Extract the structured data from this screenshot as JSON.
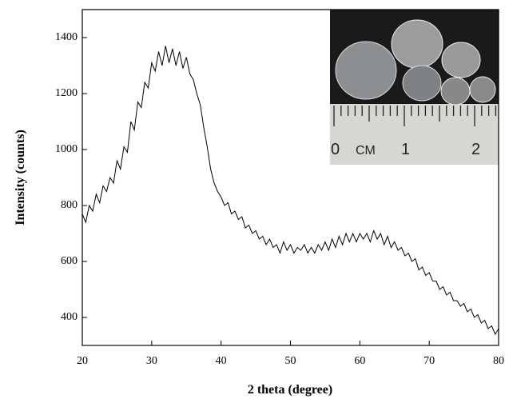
{
  "chart_data": {
    "type": "line",
    "x_label": "2 theta (degree)",
    "y_label": "Intensity (counts)",
    "x": [
      20,
      20.5,
      21,
      21.5,
      22,
      22.5,
      23,
      23.5,
      24,
      24.5,
      25,
      25.5,
      26,
      26.5,
      27,
      27.5,
      28,
      28.5,
      29,
      29.5,
      30,
      30.5,
      31,
      31.5,
      32,
      32.5,
      33,
      33.5,
      34,
      34.5,
      35,
      35.5,
      36,
      36.5,
      37,
      37.5,
      38,
      38.5,
      39,
      39.5,
      40,
      40.5,
      41,
      41.5,
      42,
      42.5,
      43,
      43.5,
      44,
      44.5,
      45,
      45.5,
      46,
      46.5,
      47,
      47.5,
      48,
      48.5,
      49,
      49.5,
      50,
      50.5,
      51,
      51.5,
      52,
      52.5,
      53,
      53.5,
      54,
      54.5,
      55,
      55.5,
      56,
      56.5,
      57,
      57.5,
      58,
      58.5,
      59,
      59.5,
      60,
      60.5,
      61,
      61.5,
      62,
      62.5,
      63,
      63.5,
      64,
      64.5,
      65,
      65.5,
      66,
      66.5,
      67,
      67.5,
      68,
      68.5,
      69,
      69.5,
      70,
      70.5,
      71,
      71.5,
      72,
      72.5,
      73,
      73.5,
      74,
      74.5,
      75,
      75.5,
      76,
      76.5,
      77,
      77.5,
      78,
      78.5,
      79,
      79.5,
      80
    ],
    "values": [
      770,
      740,
      800,
      780,
      840,
      810,
      870,
      850,
      900,
      880,
      960,
      930,
      1010,
      990,
      1100,
      1070,
      1170,
      1150,
      1240,
      1220,
      1310,
      1280,
      1350,
      1300,
      1370,
      1310,
      1360,
      1300,
      1350,
      1290,
      1330,
      1270,
      1250,
      1200,
      1160,
      1080,
      1010,
      930,
      880,
      850,
      830,
      800,
      810,
      770,
      780,
      750,
      760,
      720,
      730,
      700,
      710,
      680,
      690,
      660,
      680,
      650,
      660,
      630,
      670,
      640,
      660,
      630,
      650,
      640,
      660,
      630,
      650,
      630,
      660,
      640,
      670,
      640,
      680,
      650,
      690,
      660,
      700,
      670,
      700,
      670,
      700,
      680,
      700,
      670,
      710,
      680,
      700,
      660,
      690,
      650,
      670,
      640,
      650,
      620,
      630,
      600,
      610,
      570,
      580,
      550,
      560,
      530,
      530,
      500,
      510,
      480,
      490,
      460,
      460,
      440,
      450,
      420,
      430,
      400,
      410,
      380,
      390,
      360,
      370,
      340,
      360
    ],
    "color": "#000000",
    "xlim": [
      20,
      80
    ],
    "ylim": [
      300,
      1500
    ],
    "xticks": [
      20,
      30,
      40,
      50,
      60,
      70,
      80
    ],
    "yticks": [
      400,
      600,
      800,
      1000,
      1200,
      1400
    ],
    "annotations": [
      "0",
      "CM",
      "1",
      "2"
    ]
  }
}
